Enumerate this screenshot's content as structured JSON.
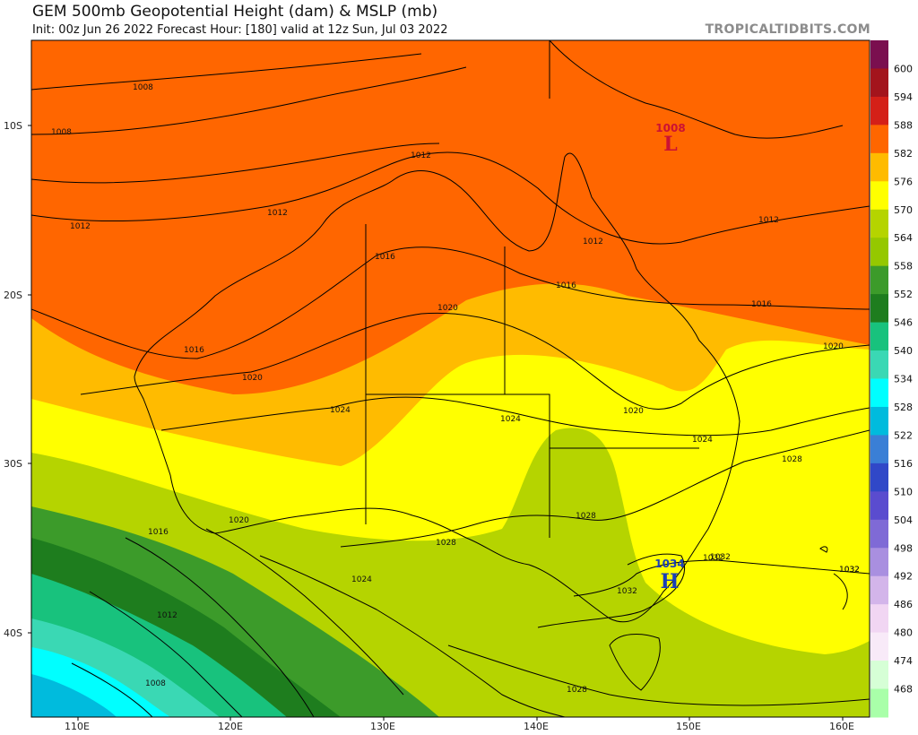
{
  "header": {
    "title": "GEM 500mb Geopotential Height (dam) & MSLP (mb)",
    "subtitle": "Init: 00z Jun 26 2022   Forecast Hour: [180]   valid at 12z Sun, Jul 03 2022",
    "brand": "TROPICALTIDBITS.COM"
  },
  "axes": {
    "latitude_labels": [
      "10S",
      "20S",
      "30S",
      "40S"
    ],
    "longitude_labels": [
      "110E",
      "120E",
      "130E",
      "140E",
      "150E",
      "160E"
    ]
  },
  "color_scale": {
    "labels": [
      "600",
      "594",
      "588",
      "582",
      "576",
      "570",
      "564",
      "558",
      "552",
      "546",
      "540",
      "534",
      "528",
      "522",
      "516",
      "510",
      "504",
      "498",
      "492",
      "486",
      "480",
      "474",
      "468"
    ],
    "colors": [
      "#7a0f4f",
      "#a3141c",
      "#d42018",
      "#ff6600",
      "#ffbb00",
      "#ffff00",
      "#b5d400",
      "#95c800",
      "#3c9b2a",
      "#1e7d1e",
      "#18c27d",
      "#3ad8b4",
      "#00ffff",
      "#00bbdd",
      "#3a7fd6",
      "#3048c8",
      "#5a4ccf",
      "#7f6ad6",
      "#a98fe0",
      "#d3b5ea",
      "#f1d6f3",
      "#f8eaf8",
      "#d6ffd6",
      "#a9ffa9"
    ]
  },
  "pressure_centers": [
    {
      "type": "L",
      "value": "1008",
      "color": "#cc1133"
    },
    {
      "type": "H",
      "value": "1034",
      "color": "#1a3fb8"
    }
  ],
  "isobar_labels": [
    "1008",
    "1008",
    "1012",
    "1012",
    "1012",
    "1012",
    "1012",
    "1016",
    "1016",
    "1016",
    "1016",
    "1020",
    "1020",
    "1020",
    "1020",
    "1024",
    "1024",
    "1024",
    "1028",
    "1028",
    "1028",
    "1032",
    "1032",
    "1032",
    "1012",
    "1008",
    "1016",
    "1020",
    "1024",
    "1028",
    "1032",
    "1032"
  ]
}
